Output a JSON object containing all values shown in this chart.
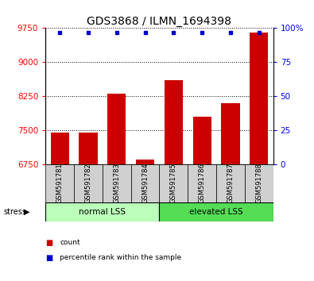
{
  "title": "GDS3868 / ILMN_1694398",
  "samples": [
    "GSM591781",
    "GSM591782",
    "GSM591783",
    "GSM591784",
    "GSM591785",
    "GSM591786",
    "GSM591787",
    "GSM591788"
  ],
  "bar_values": [
    7450,
    7450,
    8300,
    6850,
    8600,
    7800,
    8100,
    9650
  ],
  "percentile_values": [
    97,
    97,
    97,
    97,
    97,
    97,
    97,
    97
  ],
  "bar_color": "#cc0000",
  "dot_color": "#0000cc",
  "ylim_left": [
    6750,
    9750
  ],
  "yticks_left": [
    6750,
    7500,
    8250,
    9000,
    9750
  ],
  "ylim_right": [
    0,
    100
  ],
  "yticks_right": [
    0,
    25,
    50,
    75,
    100
  ],
  "ytick_labels_right": [
    "0",
    "25",
    "50",
    "75",
    "100%"
  ],
  "groups": [
    {
      "label": "normal LSS",
      "start": 0,
      "end": 4,
      "color": "#bbffbb"
    },
    {
      "label": "elevated LSS",
      "start": 4,
      "end": 8,
      "color": "#55dd55"
    }
  ],
  "stress_label": "stress",
  "legend_items": [
    {
      "color": "#cc0000",
      "label": "count"
    },
    {
      "color": "#0000cc",
      "label": "percentile rank within the sample"
    }
  ],
  "background_color": "#ffffff",
  "title_fontsize": 10,
  "tick_fontsize": 7.5,
  "label_fontsize": 7
}
